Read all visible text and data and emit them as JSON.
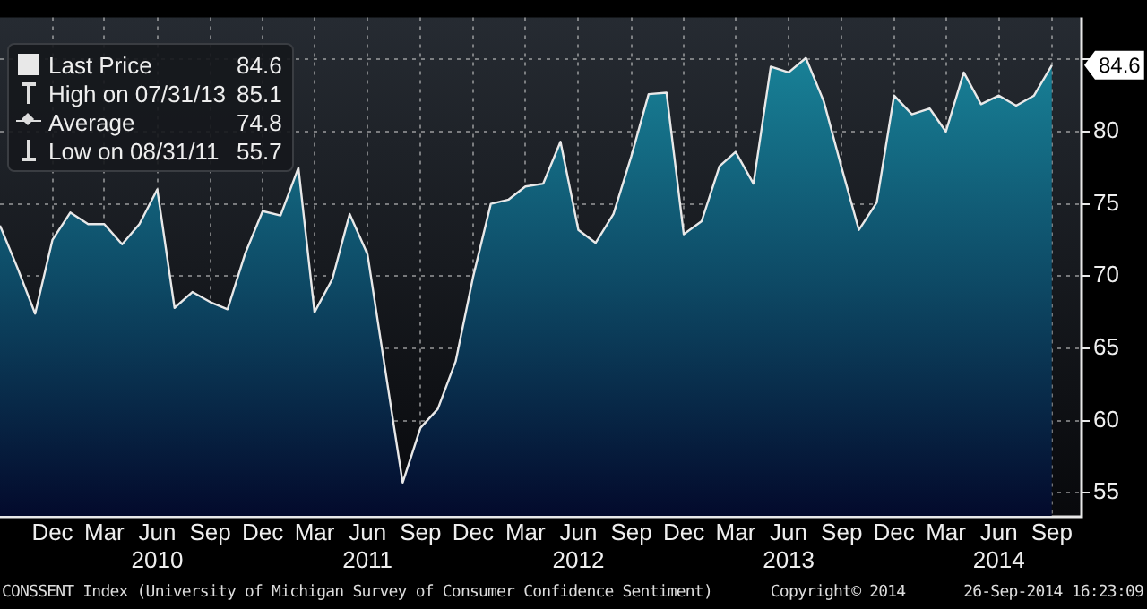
{
  "chart_data": {
    "type": "area",
    "x": [
      "2009-09",
      "2009-10",
      "2009-11",
      "2009-12",
      "2010-01",
      "2010-02",
      "2010-03",
      "2010-04",
      "2010-05",
      "2010-06",
      "2010-07",
      "2010-08",
      "2010-09",
      "2010-10",
      "2010-11",
      "2010-12",
      "2011-01",
      "2011-02",
      "2011-03",
      "2011-04",
      "2011-05",
      "2011-06",
      "2011-07",
      "2011-08",
      "2011-09",
      "2011-10",
      "2011-11",
      "2011-12",
      "2012-01",
      "2012-02",
      "2012-03",
      "2012-04",
      "2012-05",
      "2012-06",
      "2012-07",
      "2012-08",
      "2012-09",
      "2012-10",
      "2012-11",
      "2012-12",
      "2013-01",
      "2013-02",
      "2013-03",
      "2013-04",
      "2013-05",
      "2013-06",
      "2013-07",
      "2013-08",
      "2013-09",
      "2013-10",
      "2013-11",
      "2013-12",
      "2014-01",
      "2014-02",
      "2014-03",
      "2014-04",
      "2014-05",
      "2014-06",
      "2014-07",
      "2014-08",
      "2014-09"
    ],
    "series": [
      {
        "name": "Last Price",
        "color": "#e8e8e8",
        "values": [
          73.5,
          70.6,
          67.4,
          72.5,
          74.4,
          73.6,
          73.6,
          72.2,
          73.6,
          76.0,
          67.8,
          68.9,
          68.2,
          67.7,
          71.6,
          74.5,
          74.2,
          77.5,
          67.5,
          69.8,
          74.3,
          71.5,
          63.7,
          55.7,
          59.5,
          60.8,
          64.1,
          69.9,
          75.0,
          75.3,
          76.2,
          76.4,
          79.3,
          73.2,
          72.3,
          74.3,
          78.3,
          82.6,
          82.7,
          72.9,
          73.8,
          77.6,
          78.6,
          76.4,
          84.5,
          84.1,
          85.1,
          82.1,
          77.5,
          73.2,
          75.1,
          82.5,
          81.2,
          81.6,
          80.0,
          84.1,
          81.9,
          82.5,
          81.8,
          82.5,
          84.6
        ]
      }
    ],
    "xlim": [
      "2009-09",
      "2014-10-21"
    ],
    "xticks": [
      {
        "value": "2009-12",
        "label": "Dec"
      },
      {
        "value": "2010-03",
        "label": "Mar"
      },
      {
        "value": "2010-06",
        "label": "Jun\n2010"
      },
      {
        "value": "2010-09",
        "label": "Sep"
      },
      {
        "value": "2010-12",
        "label": "Dec"
      },
      {
        "value": "2011-03",
        "label": "Mar"
      },
      {
        "value": "2011-06",
        "label": "Jun\n2011"
      },
      {
        "value": "2011-09",
        "label": "Sep"
      },
      {
        "value": "2011-12",
        "label": "Dec"
      },
      {
        "value": "2012-03",
        "label": "Mar"
      },
      {
        "value": "2012-06",
        "label": "Jun\n2012"
      },
      {
        "value": "2012-09",
        "label": "Sep"
      },
      {
        "value": "2012-12",
        "label": "Dec"
      },
      {
        "value": "2013-03",
        "label": "Mar"
      },
      {
        "value": "2013-06",
        "label": "Jun\n2013"
      },
      {
        "value": "2013-09",
        "label": "Sep"
      },
      {
        "value": "2013-12",
        "label": "Dec"
      },
      {
        "value": "2014-03",
        "label": "Mar"
      },
      {
        "value": "2014-06",
        "label": "Jun\n2014"
      },
      {
        "value": "2014-09",
        "label": "Sep"
      }
    ],
    "ylim": [
      53.4,
      87.9
    ],
    "yticks": [
      55,
      60,
      65,
      70,
      75,
      80,
      {
        "value": 85,
        "label": null
      }
    ],
    "grid": true,
    "legend": "top left",
    "marker": "none",
    "annotations": [
      "84.6",
      "High on 07/31/13",
      "85.1",
      "Average",
      "74.8",
      "Low on 08/31/11",
      "55.7",
      "CONSSENT Index (University of Michigan Survey of Consumer Confidence Sentiment)",
      "Copyright© 2014",
      "26-Sep-2014 16:23:09",
      {
        "text": "84.6",
        "x": "2014-09",
        "y": 84.6
      }
    ]
  }
}
